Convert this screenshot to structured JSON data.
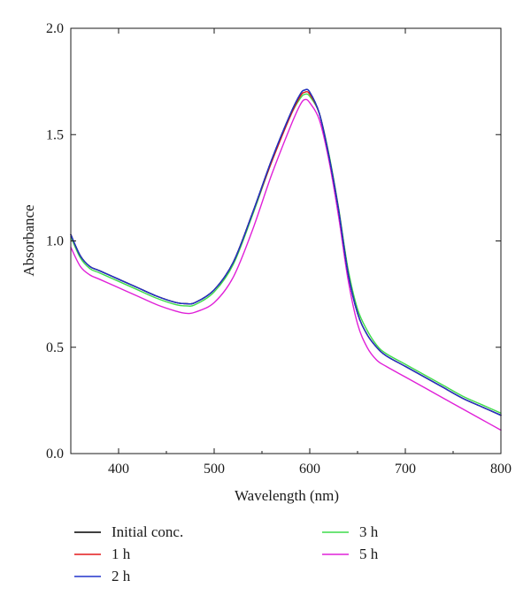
{
  "chart_data": {
    "type": "line",
    "title": "",
    "xlabel": "Wavelength (nm)",
    "ylabel": "Absorbance",
    "xlim": [
      350,
      800
    ],
    "ylim": [
      0.0,
      2.0
    ],
    "xticks": [
      400,
      500,
      600,
      700,
      800
    ],
    "yticks": [
      "0.0",
      "0.5",
      "1.0",
      "1.5",
      "2.0"
    ],
    "grid": false,
    "legend_position": "bottom",
    "x": [
      350,
      360,
      370,
      380,
      400,
      420,
      440,
      460,
      470,
      480,
      500,
      520,
      540,
      560,
      580,
      590,
      595,
      600,
      610,
      620,
      630,
      640,
      650,
      660,
      670,
      680,
      700,
      720,
      740,
      760,
      780,
      800
    ],
    "series": [
      {
        "name": "Initial conc.",
        "color": "#000000",
        "values": [
          1.03,
          0.93,
          0.88,
          0.86,
          0.82,
          0.78,
          0.74,
          0.71,
          0.705,
          0.71,
          0.77,
          0.9,
          1.13,
          1.38,
          1.6,
          1.69,
          1.71,
          1.7,
          1.6,
          1.4,
          1.15,
          0.85,
          0.66,
          0.56,
          0.5,
          0.46,
          0.41,
          0.36,
          0.31,
          0.26,
          0.22,
          0.18
        ]
      },
      {
        "name": "1 h",
        "color": "#e41a1c",
        "values": [
          1.03,
          0.93,
          0.88,
          0.86,
          0.82,
          0.78,
          0.74,
          0.71,
          0.705,
          0.71,
          0.77,
          0.9,
          1.13,
          1.37,
          1.59,
          1.68,
          1.7,
          1.69,
          1.6,
          1.4,
          1.15,
          0.85,
          0.66,
          0.56,
          0.5,
          0.46,
          0.41,
          0.36,
          0.31,
          0.26,
          0.22,
          0.18
        ]
      },
      {
        "name": "2 h",
        "color": "#2233cc",
        "values": [
          1.03,
          0.93,
          0.88,
          0.86,
          0.82,
          0.78,
          0.74,
          0.71,
          0.705,
          0.71,
          0.77,
          0.9,
          1.13,
          1.38,
          1.6,
          1.69,
          1.71,
          1.7,
          1.6,
          1.4,
          1.15,
          0.85,
          0.66,
          0.56,
          0.5,
          0.46,
          0.41,
          0.36,
          0.31,
          0.26,
          0.22,
          0.18
        ]
      },
      {
        "name": "3 h",
        "color": "#3ddc4a",
        "values": [
          1.02,
          0.92,
          0.87,
          0.85,
          0.81,
          0.77,
          0.73,
          0.7,
          0.695,
          0.7,
          0.76,
          0.89,
          1.12,
          1.37,
          1.59,
          1.67,
          1.69,
          1.68,
          1.6,
          1.41,
          1.16,
          0.87,
          0.68,
          0.58,
          0.51,
          0.47,
          0.42,
          0.37,
          0.32,
          0.27,
          0.23,
          0.19
        ]
      },
      {
        "name": "5 h",
        "color": "#e020d8",
        "values": [
          0.97,
          0.88,
          0.84,
          0.82,
          0.78,
          0.74,
          0.7,
          0.67,
          0.66,
          0.665,
          0.71,
          0.83,
          1.05,
          1.31,
          1.54,
          1.64,
          1.665,
          1.65,
          1.57,
          1.38,
          1.12,
          0.82,
          0.61,
          0.5,
          0.44,
          0.41,
          0.36,
          0.31,
          0.26,
          0.21,
          0.16,
          0.11
        ]
      }
    ]
  }
}
